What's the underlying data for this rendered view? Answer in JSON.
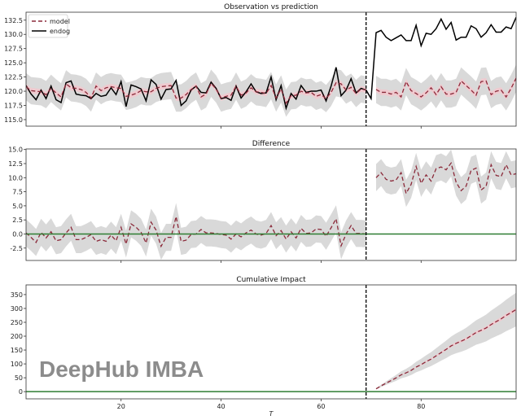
{
  "chart_data": [
    {
      "type": "line",
      "title": "Observation vs prediction",
      "xlim": [
        1,
        99
      ],
      "ylim": [
        113.85,
        133.9
      ],
      "yticks": [
        115.0,
        117.5,
        120.0,
        122.5,
        125.0,
        127.5,
        130.0,
        132.5
      ],
      "ytick_labels": [
        "115.0",
        "117.5",
        "120.0",
        "122.5",
        "125.0",
        "127.5",
        "130.0",
        "132.5"
      ],
      "legend": {
        "placement": "top-left",
        "entries": [
          "model",
          "endog"
        ]
      },
      "intervention_x": 69,
      "endog_x_start": 1,
      "endog": [
        121,
        119.5,
        118.5,
        120.2,
        118.7,
        120.9,
        118.5,
        118,
        121.5,
        121.8,
        119.5,
        119.3,
        119.2,
        118.7,
        119.6,
        119.1,
        119.3,
        120.6,
        119.4,
        121.7,
        117.3,
        121.1,
        120.8,
        120.4,
        118.3,
        122,
        121.2,
        118.6,
        120.3,
        120.4,
        121.9,
        117.5,
        118.3,
        120.2,
        120.9,
        119.8,
        119.7,
        121.6,
        120.5,
        118.7,
        118.9,
        118.4,
        120.9,
        118.8,
        119.9,
        121.3,
        119.9,
        119.6,
        119.7,
        122.5,
        118.5,
        121,
        117,
        119.6,
        118.6,
        121,
        119.8,
        120,
        120,
        120.2,
        118.3,
        120.9,
        124.2,
        119.2,
        120.2,
        122.2,
        119.7,
        120.5,
        120.2,
        118.7,
        130.3,
        130.7,
        129.5,
        128.9,
        129.4,
        129.9,
        128.9,
        128.9,
        131.6,
        128,
        130.2,
        130,
        131,
        132.7,
        130.9,
        132.1,
        129,
        129.5,
        129.5,
        131.5,
        131,
        129.5,
        130.3,
        131.7,
        130.4,
        130.4,
        131.3,
        131,
        133
      ],
      "model_pre_x_start": 1,
      "model_pre": [
        120.8,
        120.1,
        120,
        119.9,
        119.4,
        120.5,
        119.7,
        119,
        121.3,
        120.6,
        120.5,
        120.3,
        119.8,
        118.8,
        120.9,
        120.1,
        120.6,
        120.8,
        120.6,
        120.5,
        119.1,
        119.3,
        119.6,
        120.1,
        119.9,
        119.9,
        120.5,
        120.8,
        120.9,
        121,
        118.8,
        118.8,
        119.4,
        120.3,
        120.9,
        119,
        119.5,
        121.4,
        120.4,
        118.8,
        119.1,
        119.3,
        120.9,
        119.3,
        119.7,
        120.6,
        119.9,
        119.8,
        119.6,
        121,
        118.8,
        120.4,
        117.9,
        119.2,
        119.3,
        120,
        119.7,
        119.8,
        119.1,
        119.4,
        118.7,
        119.8,
        121.5,
        121.3,
        120.2,
        120.7,
        119.6,
        120.4,
        120.2
      ],
      "model_post_x_start": 71,
      "model_post": [
        120.3,
        119.8,
        119.8,
        119.5,
        119.8,
        119,
        121.7,
        120.1,
        119.6,
        119,
        119.7,
        120.6,
        119.4,
        120.8,
        119.5,
        119.5,
        119.8,
        121.8,
        121,
        120.2,
        119.3,
        121.7,
        121.8,
        119.4,
        120,
        120.2,
        119,
        120.5,
        122.3
      ],
      "interval_halfwidth": 2.4
    },
    {
      "type": "line",
      "title": "Difference",
      "xlim": [
        1,
        99
      ],
      "ylim": [
        -4.7,
        15.1
      ],
      "yticks": [
        -2.5,
        0,
        2.5,
        5,
        7.5,
        10,
        12.5,
        15
      ],
      "ytick_labels": [
        "-2.5",
        "0.0",
        "2.5",
        "5.0",
        "7.5",
        "10.0",
        "12.5",
        "15.0"
      ],
      "reference_y": 0,
      "intervention_x": 69,
      "interval_halfwidth": 2.4
    },
    {
      "type": "line",
      "title": "Cumulative Impact",
      "xlim": [
        1,
        99
      ],
      "ylim": [
        -26,
        385
      ],
      "yticks": [
        0,
        50,
        100,
        150,
        200,
        250,
        300,
        350
      ],
      "ytick_labels": [
        "0",
        "50",
        "100",
        "150",
        "200",
        "250",
        "300",
        "350"
      ],
      "xticks": [
        20,
        40,
        60,
        80
      ],
      "xtick_labels": [
        "20",
        "40",
        "60",
        "80"
      ],
      "xlabel": "T",
      "reference_y": 0,
      "intervention_x": 69,
      "interval_halfwidth_per_step": 2.1
    }
  ],
  "colors": {
    "model": "#8b2a3a",
    "endog": "#000000",
    "band": "#d9d9d9",
    "inner_band": "#f4c6cc",
    "zero_line": "#2e7d32",
    "intervention": "#000000"
  },
  "watermark": "DeepHub IMBA"
}
